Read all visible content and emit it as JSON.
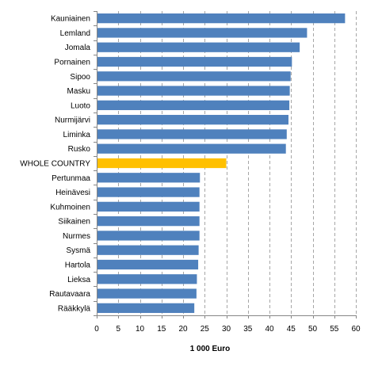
{
  "chart_data": {
    "type": "bar",
    "orientation": "horizontal",
    "categories": [
      "Kauniainen",
      "Lemland",
      "Jomala",
      "Pornainen",
      "Sipoo",
      "Masku",
      "Luoto",
      "Nurmijärvi",
      "Liminka",
      "Rusko",
      "WHOLE COUNTRY",
      "Pertunmaa",
      "Heinävesi",
      "Kuhmoinen",
      "Siikainen",
      "Nurmes",
      "Sysmä",
      "Hartola",
      "Lieksa",
      "Rautavaara",
      "Rääkkylä"
    ],
    "values": [
      57.5,
      48.7,
      47.0,
      45.2,
      44.9,
      44.7,
      44.6,
      44.4,
      44.0,
      43.8,
      30.0,
      23.9,
      23.8,
      23.8,
      23.8,
      23.8,
      23.6,
      23.5,
      23.2,
      23.1,
      22.6
    ],
    "highlight_category": "WHOLE COUNTRY",
    "xlim": [
      0,
      60
    ],
    "xticks": [
      "0",
      "5",
      "10",
      "15",
      "20",
      "25",
      "30",
      "35",
      "40",
      "45",
      "50",
      "55",
      "60"
    ],
    "xlabel": "1 000  Euro",
    "ylabel": "",
    "title": "",
    "grid": "vertical dashed",
    "colors": {
      "bar": "#4F81BD",
      "highlight": "#FFC000",
      "grid": "#A6A6A6",
      "axis": "#868686",
      "text": "#000000"
    }
  }
}
